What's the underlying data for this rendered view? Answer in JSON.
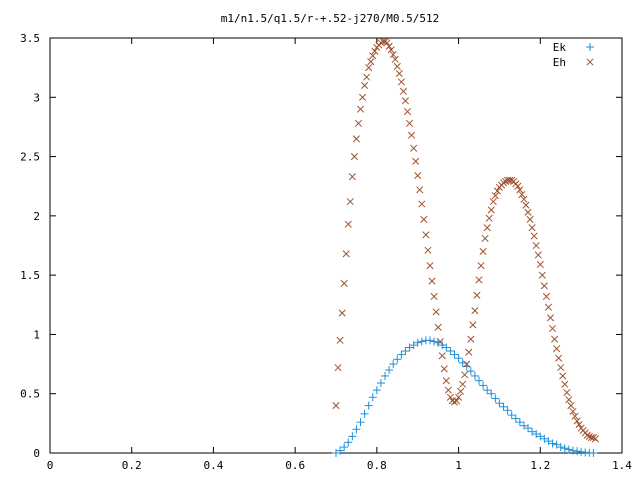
{
  "chart_data": {
    "type": "scatter",
    "title": "m1/n1.5/q1.5/r-+.52-j270/M0.5/512",
    "xlabel": "",
    "ylabel": "",
    "xlim": [
      0,
      1.4
    ],
    "ylim": [
      0,
      3.5
    ],
    "x_ticks": [
      "0",
      "0.2",
      "0.4",
      "0.6",
      "0.8",
      "1",
      "1.2",
      "1.4"
    ],
    "y_ticks": [
      "0",
      "0.5",
      "1",
      "1.5",
      "2",
      "2.5",
      "3",
      "3.5"
    ],
    "legend_position": "top-right",
    "grid": false,
    "series": [
      {
        "name": "Ek",
        "marker": "plus",
        "color": "#1f8fd8",
        "points": [
          [
            0.7,
            0.0
          ],
          [
            0.71,
            0.02
          ],
          [
            0.72,
            0.05
          ],
          [
            0.73,
            0.09
          ],
          [
            0.74,
            0.14
          ],
          [
            0.75,
            0.2
          ],
          [
            0.76,
            0.26
          ],
          [
            0.77,
            0.33
          ],
          [
            0.78,
            0.4
          ],
          [
            0.79,
            0.47
          ],
          [
            0.8,
            0.53
          ],
          [
            0.81,
            0.59
          ],
          [
            0.82,
            0.65
          ],
          [
            0.83,
            0.7
          ],
          [
            0.84,
            0.75
          ],
          [
            0.85,
            0.79
          ],
          [
            0.86,
            0.83
          ],
          [
            0.87,
            0.86
          ],
          [
            0.88,
            0.89
          ],
          [
            0.89,
            0.91
          ],
          [
            0.9,
            0.93
          ],
          [
            0.91,
            0.94
          ],
          [
            0.92,
            0.95
          ],
          [
            0.93,
            0.95
          ],
          [
            0.94,
            0.94
          ],
          [
            0.95,
            0.93
          ],
          [
            0.96,
            0.91
          ],
          [
            0.97,
            0.89
          ],
          [
            0.98,
            0.86
          ],
          [
            0.99,
            0.83
          ],
          [
            1.0,
            0.8
          ],
          [
            1.01,
            0.76
          ],
          [
            1.02,
            0.73
          ],
          [
            1.03,
            0.69
          ],
          [
            1.04,
            0.65
          ],
          [
            1.05,
            0.61
          ],
          [
            1.06,
            0.57
          ],
          [
            1.07,
            0.53
          ],
          [
            1.08,
            0.5
          ],
          [
            1.09,
            0.46
          ],
          [
            1.1,
            0.42
          ],
          [
            1.11,
            0.39
          ],
          [
            1.12,
            0.36
          ],
          [
            1.13,
            0.32
          ],
          [
            1.14,
            0.29
          ],
          [
            1.15,
            0.26
          ],
          [
            1.16,
            0.23
          ],
          [
            1.17,
            0.21
          ],
          [
            1.18,
            0.18
          ],
          [
            1.19,
            0.16
          ],
          [
            1.2,
            0.14
          ],
          [
            1.21,
            0.12
          ],
          [
            1.22,
            0.1
          ],
          [
            1.23,
            0.08
          ],
          [
            1.24,
            0.07
          ],
          [
            1.25,
            0.05
          ],
          [
            1.26,
            0.04
          ],
          [
            1.27,
            0.03
          ],
          [
            1.28,
            0.02
          ],
          [
            1.29,
            0.015
          ],
          [
            1.3,
            0.01
          ],
          [
            1.31,
            0.005
          ],
          [
            1.32,
            0.002
          ],
          [
            1.33,
            0.0
          ]
        ]
      },
      {
        "name": "Eh",
        "marker": "x",
        "color": "#a0522d",
        "points": [
          [
            0.7,
            0.4
          ],
          [
            0.705,
            0.72
          ],
          [
            0.71,
            0.95
          ],
          [
            0.715,
            1.18
          ],
          [
            0.72,
            1.43
          ],
          [
            0.725,
            1.68
          ],
          [
            0.73,
            1.93
          ],
          [
            0.735,
            2.12
          ],
          [
            0.74,
            2.33
          ],
          [
            0.745,
            2.5
          ],
          [
            0.75,
            2.65
          ],
          [
            0.755,
            2.78
          ],
          [
            0.76,
            2.9
          ],
          [
            0.765,
            3.0
          ],
          [
            0.77,
            3.1
          ],
          [
            0.775,
            3.17
          ],
          [
            0.78,
            3.25
          ],
          [
            0.785,
            3.3
          ],
          [
            0.79,
            3.35
          ],
          [
            0.795,
            3.39
          ],
          [
            0.8,
            3.42
          ],
          [
            0.805,
            3.44
          ],
          [
            0.81,
            3.46
          ],
          [
            0.815,
            3.47
          ],
          [
            0.82,
            3.47
          ],
          [
            0.825,
            3.46
          ],
          [
            0.83,
            3.43
          ],
          [
            0.835,
            3.4
          ],
          [
            0.84,
            3.36
          ],
          [
            0.845,
            3.32
          ],
          [
            0.85,
            3.26
          ],
          [
            0.855,
            3.2
          ],
          [
            0.86,
            3.13
          ],
          [
            0.865,
            3.05
          ],
          [
            0.87,
            2.97
          ],
          [
            0.875,
            2.88
          ],
          [
            0.88,
            2.78
          ],
          [
            0.885,
            2.68
          ],
          [
            0.89,
            2.57
          ],
          [
            0.895,
            2.46
          ],
          [
            0.9,
            2.34
          ],
          [
            0.905,
            2.22
          ],
          [
            0.91,
            2.1
          ],
          [
            0.915,
            1.97
          ],
          [
            0.92,
            1.84
          ],
          [
            0.925,
            1.71
          ],
          [
            0.93,
            1.58
          ],
          [
            0.935,
            1.45
          ],
          [
            0.94,
            1.32
          ],
          [
            0.945,
            1.19
          ],
          [
            0.95,
            1.06
          ],
          [
            0.955,
            0.94
          ],
          [
            0.96,
            0.82
          ],
          [
            0.965,
            0.71
          ],
          [
            0.97,
            0.61
          ],
          [
            0.975,
            0.53
          ],
          [
            0.98,
            0.47
          ],
          [
            0.985,
            0.44
          ],
          [
            0.99,
            0.43
          ],
          [
            0.995,
            0.44
          ],
          [
            1.0,
            0.47
          ],
          [
            1.005,
            0.52
          ],
          [
            1.01,
            0.58
          ],
          [
            1.015,
            0.66
          ],
          [
            1.02,
            0.75
          ],
          [
            1.025,
            0.85
          ],
          [
            1.03,
            0.96
          ],
          [
            1.035,
            1.08
          ],
          [
            1.04,
            1.2
          ],
          [
            1.045,
            1.33
          ],
          [
            1.05,
            1.46
          ],
          [
            1.055,
            1.58
          ],
          [
            1.06,
            1.7
          ],
          [
            1.065,
            1.81
          ],
          [
            1.07,
            1.9
          ],
          [
            1.075,
            1.98
          ],
          [
            1.08,
            2.05
          ],
          [
            1.085,
            2.12
          ],
          [
            1.09,
            2.17
          ],
          [
            1.095,
            2.21
          ],
          [
            1.1,
            2.24
          ],
          [
            1.105,
            2.26
          ],
          [
            1.11,
            2.28
          ],
          [
            1.115,
            2.29
          ],
          [
            1.12,
            2.3
          ],
          [
            1.125,
            2.3
          ],
          [
            1.13,
            2.3
          ],
          [
            1.135,
            2.29
          ],
          [
            1.14,
            2.27
          ],
          [
            1.145,
            2.25
          ],
          [
            1.15,
            2.22
          ],
          [
            1.155,
            2.18
          ],
          [
            1.16,
            2.14
          ],
          [
            1.165,
            2.09
          ],
          [
            1.17,
            2.03
          ],
          [
            1.175,
            1.97
          ],
          [
            1.18,
            1.9
          ],
          [
            1.185,
            1.83
          ],
          [
            1.19,
            1.75
          ],
          [
            1.195,
            1.67
          ],
          [
            1.2,
            1.59
          ],
          [
            1.205,
            1.5
          ],
          [
            1.21,
            1.41
          ],
          [
            1.215,
            1.32
          ],
          [
            1.22,
            1.23
          ],
          [
            1.225,
            1.14
          ],
          [
            1.23,
            1.05
          ],
          [
            1.235,
            0.96
          ],
          [
            1.24,
            0.88
          ],
          [
            1.245,
            0.8
          ],
          [
            1.25,
            0.72
          ],
          [
            1.255,
            0.65
          ],
          [
            1.26,
            0.58
          ],
          [
            1.265,
            0.51
          ],
          [
            1.27,
            0.45
          ],
          [
            1.275,
            0.4
          ],
          [
            1.28,
            0.35
          ],
          [
            1.285,
            0.31
          ],
          [
            1.29,
            0.27
          ],
          [
            1.295,
            0.24
          ],
          [
            1.3,
            0.21
          ],
          [
            1.305,
            0.19
          ],
          [
            1.31,
            0.17
          ],
          [
            1.315,
            0.15
          ],
          [
            1.32,
            0.14
          ],
          [
            1.325,
            0.13
          ],
          [
            1.33,
            0.13
          ],
          [
            1.335,
            0.12
          ]
        ]
      }
    ]
  }
}
